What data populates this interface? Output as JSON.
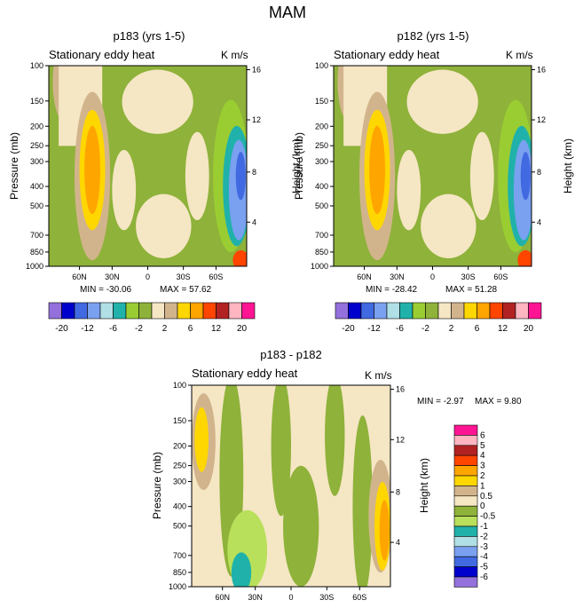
{
  "main_title": "MAM",
  "colors": {
    "m20": "#9370db",
    "m16": "#0000cd",
    "m12": "#4169e1",
    "m8": "#7aa0f0",
    "m6": "#b0dfe6",
    "m4": "#20b2aa",
    "m2": "#9acd32",
    "m0": "#8fb23a",
    "p0": "#f5e6c4",
    "p2": "#d2b48c",
    "p4": "#ffd700",
    "p6": "#ffa500",
    "p8": "#ff4500",
    "p12": "#b22222",
    "p16": "#ffb6c1",
    "p20": "#ff1493",
    "band0": "#f5e6c4",
    "bandneg": "#8fb23a",
    "bandlight": "#b8e05a"
  },
  "chart_data": [
    {
      "type": "contour",
      "name": "p183",
      "title": "p183 (yrs 1-5)",
      "subtitle": "Stationary eddy heat",
      "units": "K m/s",
      "ylabel": "Pressure (mb)",
      "ylabel_right": "Height (km)",
      "pressure_ticks": [
        "100",
        "150",
        "200",
        "250",
        "300",
        "400",
        "500",
        "700",
        "850",
        "1000"
      ],
      "height_ticks": [
        "16",
        "12",
        "8",
        "4"
      ],
      "lat_ticks": [
        "60N",
        "30N",
        "0",
        "30S",
        "60S"
      ],
      "min_label": "MIN = -30.06",
      "max_label": "MAX =  57.62",
      "min": -30.06,
      "max": 57.62
    },
    {
      "type": "contour",
      "name": "p182",
      "title": "p182 (yrs 1-5)",
      "subtitle": "Stationary eddy heat",
      "units": "K m/s",
      "ylabel": "Pressure (mb)",
      "ylabel_right": "Height (km)",
      "pressure_ticks": [
        "100",
        "150",
        "200",
        "250",
        "300",
        "400",
        "500",
        "700",
        "850",
        "1000"
      ],
      "height_ticks": [
        "16",
        "12",
        "8",
        "4"
      ],
      "lat_ticks": [
        "60N",
        "30N",
        "0",
        "30S",
        "60S"
      ],
      "min_label": "MIN = -28.42",
      "max_label": "MAX =  51.28",
      "min": -28.42,
      "max": 51.28
    },
    {
      "type": "contour",
      "name": "diff",
      "title": "p183 - p182",
      "subtitle": "Stationary eddy heat",
      "units": "K m/s",
      "ylabel": "Pressure (mb)",
      "ylabel_right": "Height (km)",
      "pressure_ticks": [
        "100",
        "150",
        "200",
        "250",
        "300",
        "400",
        "500",
        "700",
        "850",
        "1000"
      ],
      "height_ticks": [
        "16",
        "12",
        "8",
        "4"
      ],
      "lat_ticks": [
        "60N",
        "30N",
        "0",
        "30S",
        "60S"
      ],
      "min_label": "MIN =  -2.97",
      "max_label": "MAX =   9.80",
      "min": -2.97,
      "max": 9.8
    }
  ],
  "legend_top": {
    "colors": [
      "#9370db",
      "#0000cd",
      "#4169e1",
      "#7aa0f0",
      "#b0dfe6",
      "#20b2aa",
      "#9acd32",
      "#8fb23a",
      "#f5e6c4",
      "#d2b48c",
      "#ffd700",
      "#ffa500",
      "#ff4500",
      "#b22222",
      "#ffb6c1",
      "#ff1493"
    ],
    "labels": [
      "-20",
      "-12",
      "-6",
      "-2",
      "2",
      "6",
      "12",
      "20"
    ]
  },
  "legend_diff": {
    "colors": [
      "#ff1493",
      "#ffb6c1",
      "#b22222",
      "#ff4500",
      "#ffa500",
      "#ffd700",
      "#d2b48c",
      "#f5e6c4",
      "#8fb23a",
      "#b8e05a",
      "#20b2aa",
      "#b0dfe6",
      "#7aa0f0",
      "#4169e1",
      "#0000cd",
      "#9370db"
    ],
    "labels": [
      "6",
      "5",
      "4",
      "3",
      "2",
      "1",
      "0.5",
      "0",
      "-0.5",
      "-1",
      "-2",
      "-3",
      "-4",
      "-5",
      "-6"
    ]
  }
}
